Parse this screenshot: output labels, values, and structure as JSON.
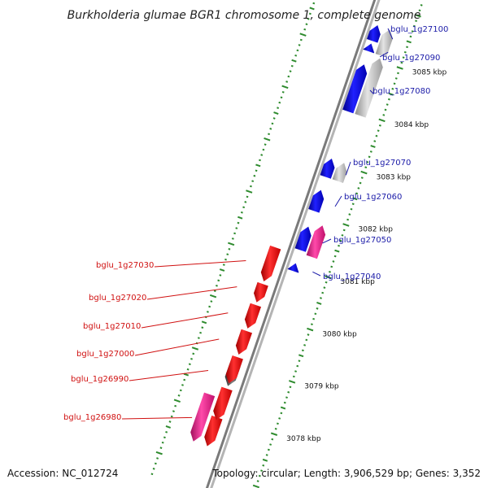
{
  "title": "Burkholderia glumae BGR1 chromosome 1, complete genome",
  "footer": {
    "accession": "Accession: NC_012724",
    "topology": "Topology: circular; Length: 3,906,529 bp; Genes: 3,352"
  },
  "colors": {
    "backbone": "#8a8a8a",
    "tick": "#2e8b2e",
    "forward_gene": "#0a0ae6",
    "forward_gray": "#b8b8b8",
    "forward_pink": "#ee1c8c",
    "reverse_gene": "#ee1111",
    "reverse_gray": "#555555",
    "reverse_pink": "#ee1c8c",
    "label_blue": "#1a1aa8",
    "label_red": "#d01010"
  },
  "scale_labels": [
    {
      "kbp": 3078,
      "text": "3078 kbp"
    },
    {
      "kbp": 3079,
      "text": "3079 kbp"
    },
    {
      "kbp": 3080,
      "text": "3080 kbp"
    },
    {
      "kbp": 3081,
      "text": "3081 kbp"
    },
    {
      "kbp": 3082,
      "text": "3082 kbp"
    },
    {
      "kbp": 3083,
      "text": "3083 kbp"
    },
    {
      "kbp": 3084,
      "text": "3084 kbp"
    },
    {
      "kbp": 3085,
      "text": "3085 kbp"
    }
  ],
  "forward_genes": [
    {
      "start": 3080.9,
      "end": 3081.05,
      "color": "blue"
    },
    {
      "start": 3081.3,
      "end": 3081.75,
      "color": "blue"
    },
    {
      "start": 3081.25,
      "end": 3081.85,
      "color": "pink"
    },
    {
      "start": 3082.05,
      "end": 3082.45,
      "color": "blue"
    },
    {
      "start": 3082.7,
      "end": 3083.05,
      "color": "blue"
    },
    {
      "start": 3082.7,
      "end": 3083.05,
      "color": "gray"
    },
    {
      "start": 3083.95,
      "end": 3084.85,
      "color": "blue"
    },
    {
      "start": 3083.95,
      "end": 3085.05,
      "color": "gray"
    },
    {
      "start": 3085.1,
      "end": 3085.25,
      "color": "blue"
    },
    {
      "start": 3085.3,
      "end": 3085.6,
      "color": "blue"
    },
    {
      "start": 3085.1,
      "end": 3085.6,
      "color": "gray"
    }
  ],
  "reverse_genes": [
    {
      "start": 3077.4,
      "end": 3077.95,
      "color": "red"
    },
    {
      "start": 3077.4,
      "end": 3078.3,
      "color": "pink"
    },
    {
      "start": 3077.9,
      "end": 3078.5,
      "color": "red"
    },
    {
      "start": 3078.55,
      "end": 3078.95,
      "color": "gray"
    },
    {
      "start": 3078.6,
      "end": 3079.1,
      "color": "red"
    },
    {
      "start": 3079.15,
      "end": 3079.6,
      "color": "red"
    },
    {
      "start": 3079.65,
      "end": 3080.1,
      "color": "red"
    },
    {
      "start": 3080.15,
      "end": 3080.5,
      "color": "red"
    },
    {
      "start": 3080.55,
      "end": 3081.2,
      "color": "red"
    }
  ],
  "gene_labels_forward": [
    {
      "text": "bglu_1g27040",
      "kbp": 3081.0
    },
    {
      "text": "bglu_1g27050",
      "kbp": 3081.55
    },
    {
      "text": "bglu_1g27060",
      "kbp": 3082.25
    },
    {
      "text": "bglu_1g27070",
      "kbp": 3082.85
    },
    {
      "text": "bglu_1g27080",
      "kbp": 3084.4
    },
    {
      "text": "bglu_1g27090",
      "kbp": 3085.2
    },
    {
      "text": "bglu_1g27100",
      "kbp": 3085.45
    }
  ],
  "gene_labels_reverse": [
    {
      "text": "bglu_1g26980",
      "kbp": 3077.8
    },
    {
      "text": "bglu_1g26990",
      "kbp": 3078.7
    },
    {
      "text": "bglu_1g27000",
      "kbp": 3079.3
    },
    {
      "text": "bglu_1g27010",
      "kbp": 3079.8
    },
    {
      "text": "bglu_1g27020",
      "kbp": 3080.3
    },
    {
      "text": "bglu_1g27030",
      "kbp": 3080.8
    }
  ]
}
